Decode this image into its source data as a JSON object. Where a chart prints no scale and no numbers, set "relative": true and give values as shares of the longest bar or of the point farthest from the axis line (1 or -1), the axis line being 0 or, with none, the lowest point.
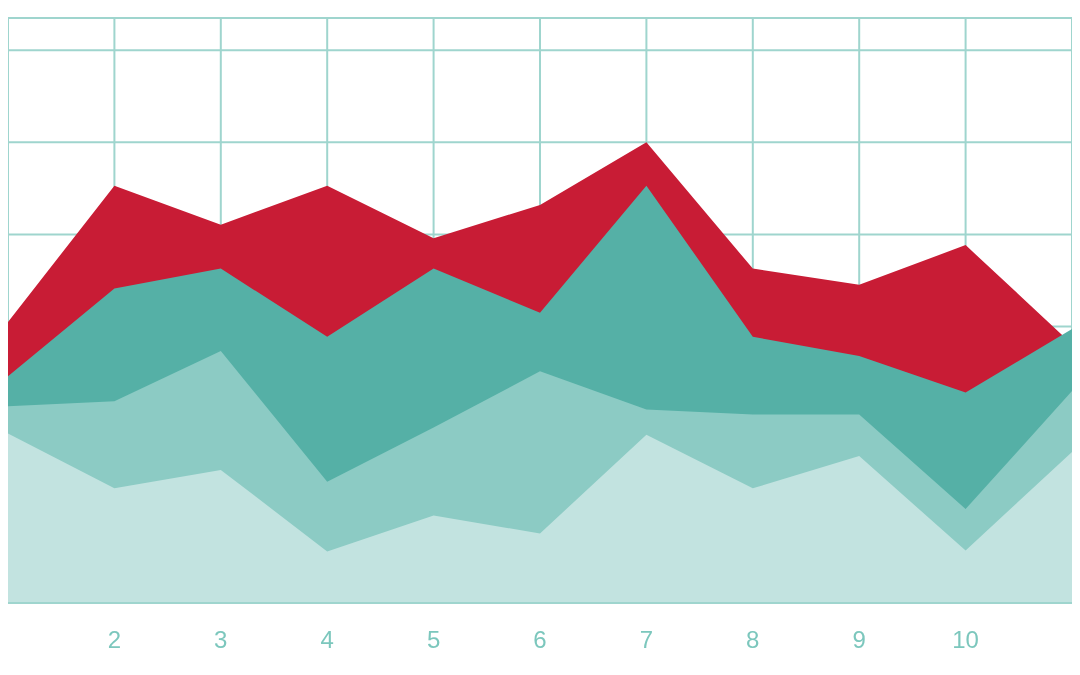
{
  "chart_data": {
    "type": "area",
    "relative": true,
    "categories": [
      null,
      "2",
      "3",
      "4",
      "5",
      "6",
      "7",
      "8",
      "9",
      "10",
      null
    ],
    "grid": true,
    "legend": false,
    "series": [
      {
        "color": "#c81c35",
        "values": [
          0.61,
          0.906,
          0.821,
          0.906,
          0.792,
          0.864,
          1,
          0.726,
          0.691,
          0.777,
          0.562
        ]
      },
      {
        "color": "#55b0a6",
        "values": [
          0.492,
          0.683,
          0.726,
          0.578,
          0.726,
          0.63,
          0.906,
          0.578,
          0.536,
          0.457,
          0.595
        ]
      },
      {
        "color": "#8ccbc4",
        "values": [
          0.427,
          0.438,
          0.547,
          0.263,
          0.381,
          0.503,
          0.42,
          0.409,
          0.409,
          0.204,
          0.46
        ]
      },
      {
        "color": "#c2e3e0",
        "values": [
          0.368,
          0.249,
          0.289,
          0.112,
          0.19,
          0.151,
          0.365,
          0.249,
          0.319,
          0.114,
          0.328
        ]
      }
    ]
  }
}
